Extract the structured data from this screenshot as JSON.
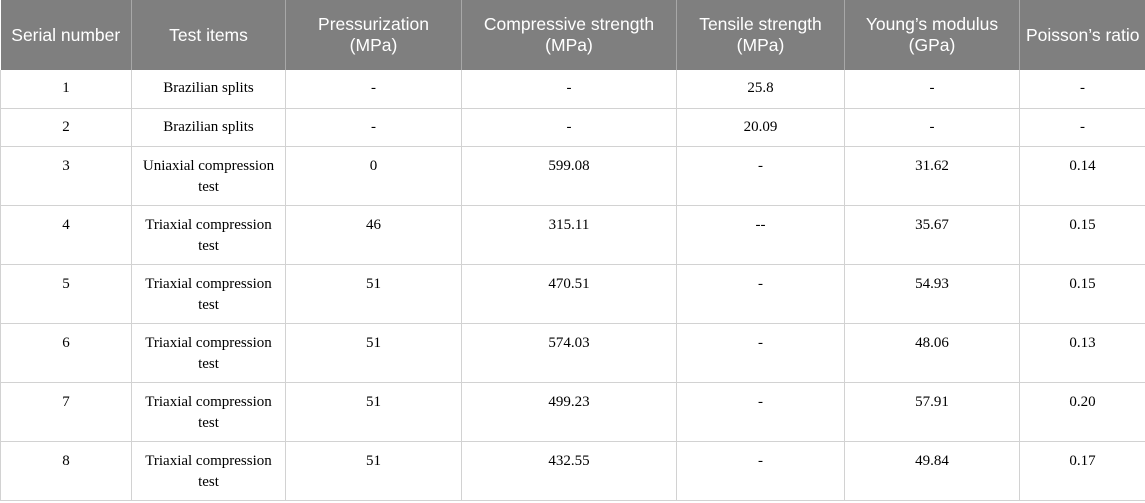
{
  "headers": [
    "Serial number",
    "Test items",
    "Pressurization (MPa)",
    "Compressive strength (MPa)",
    "Tensile strength (MPa)",
    "Young’s modulus (GPa)",
    "Poisson’s ratio"
  ],
  "rows": [
    [
      "1",
      "Brazilian splits",
      "-",
      "-",
      "25.8",
      "-",
      "-"
    ],
    [
      "2",
      "Brazilian splits",
      "-",
      "-",
      "20.09",
      "-",
      "-"
    ],
    [
      "3",
      "Uniaxial compression test",
      "0",
      "599.08",
      "-",
      "31.62",
      "0.14"
    ],
    [
      "4",
      "Triaxial compression test",
      "46",
      "315.11",
      "--",
      "35.67",
      "0.15"
    ],
    [
      "5",
      "Triaxial compression test",
      "51",
      "470.51",
      "-",
      "54.93",
      "0.15"
    ],
    [
      "6",
      "Triaxial compression test",
      "51",
      "574.03",
      "-",
      "48.06",
      "0.13"
    ],
    [
      "7",
      "Triaxial compression test",
      "51",
      "499.23",
      "-",
      "57.91",
      "0.20"
    ],
    [
      "8",
      "Triaxial compression test",
      "51",
      "432.55",
      "-",
      "49.84",
      "0.17"
    ]
  ]
}
